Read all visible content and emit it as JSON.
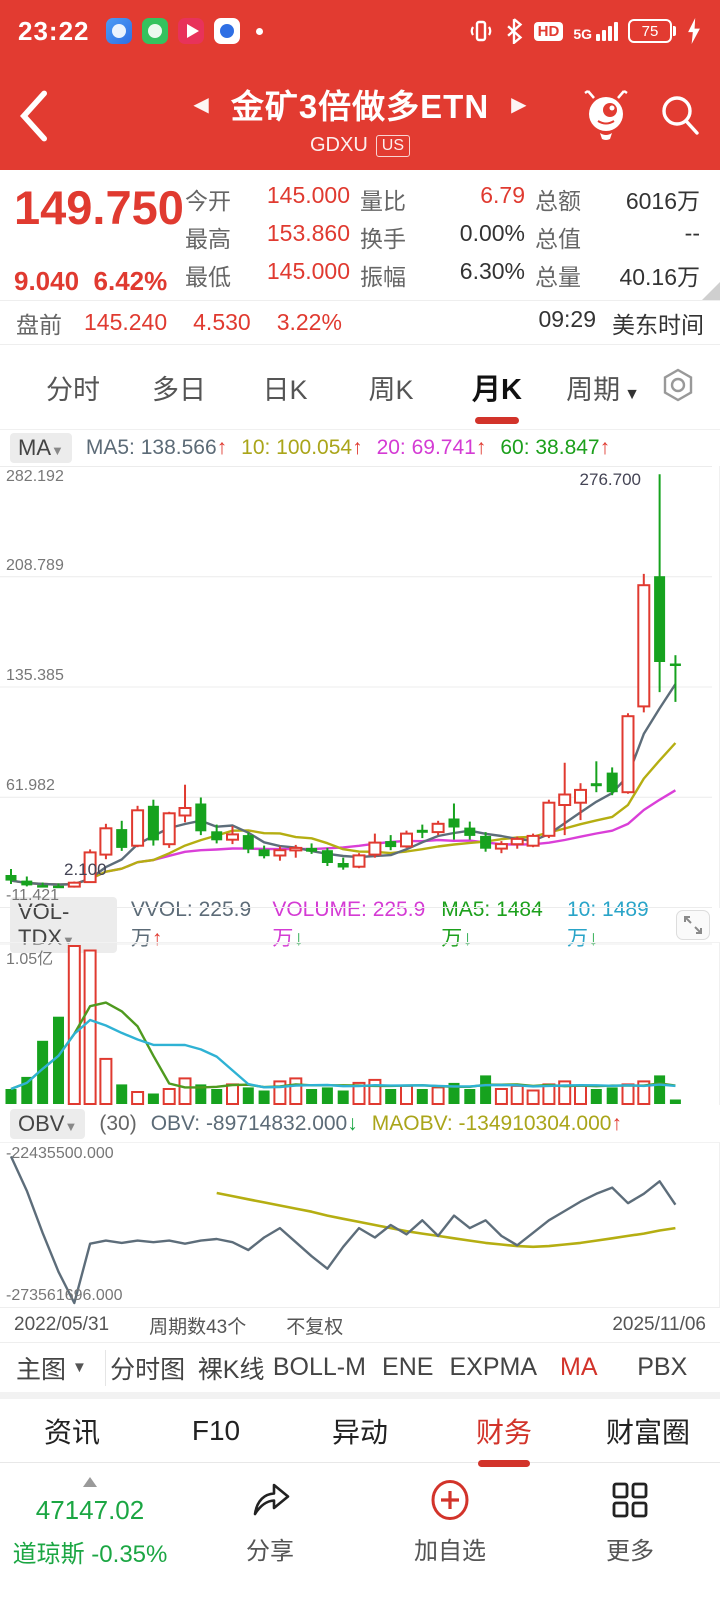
{
  "status_bar": {
    "time": "23:22",
    "hd_label": "HD",
    "network_label": "5G",
    "battery_pct": "75"
  },
  "header": {
    "title": "金矿3倍做多ETN",
    "symbol": "GDXU",
    "market": "US"
  },
  "quote": {
    "price": "149.750",
    "change": "9.040",
    "change_pct": "6.42%",
    "rows": [
      [
        {
          "label": "今开",
          "value": "145.000",
          "red": true
        },
        {
          "label": "量比",
          "value": "6.79",
          "red": true
        },
        {
          "label": "总额",
          "value": "6016万",
          "red": false
        }
      ],
      [
        {
          "label": "最高",
          "value": "153.860",
          "red": true
        },
        {
          "label": "换手",
          "value": "0.00%",
          "red": false
        },
        {
          "label": "总值",
          "value": "--",
          "red": false
        }
      ],
      [
        {
          "label": "最低",
          "value": "145.000",
          "red": true
        },
        {
          "label": "振幅",
          "value": "6.30%",
          "red": false
        },
        {
          "label": "总量",
          "value": "40.16万",
          "red": false
        }
      ]
    ]
  },
  "premarket": {
    "label": "盘前",
    "price": "145.240",
    "change": "4.530",
    "pct": "3.22%",
    "time": "09:29",
    "timezone": "美东时间"
  },
  "period_tabs": {
    "items": [
      "分时",
      "多日",
      "日K",
      "周K",
      "月K",
      "周期"
    ],
    "active": "月K"
  },
  "ma_bar": {
    "chip": "MA",
    "items": [
      {
        "text": "MA5: 138.566",
        "dir": "up",
        "color": "#5c6b77"
      },
      {
        "text": "10: 100.054",
        "dir": "up",
        "color": "#aaa51a"
      },
      {
        "text": "20: 69.741",
        "dir": "up",
        "color": "#d43bd4"
      },
      {
        "text": "60: 38.847",
        "dir": "up",
        "color": "#1ca01c"
      }
    ]
  },
  "vol_bar": {
    "chip": "VOL-TDX",
    "items": [
      {
        "text": "VVOL: 225.9万",
        "dir": "up",
        "color": "#5c6b77"
      },
      {
        "text": "VOLUME: 225.9万",
        "dir": "down",
        "color": "#d43bd4"
      },
      {
        "text": "MA5: 1484万",
        "dir": "down",
        "color": "#1ca01c"
      },
      {
        "text": "10: 1489万",
        "dir": "down",
        "color": "#29a4c8"
      }
    ]
  },
  "obv_bar": {
    "chip": "OBV",
    "param": "(30)",
    "items": [
      {
        "text": "OBV: -89714832.000",
        "dir": "down",
        "color": "#5c6b77"
      },
      {
        "text": "MAOBV: -134910304.000",
        "dir": "up",
        "color": "#aaa51a"
      }
    ]
  },
  "axis_row": {
    "start": "2022/05/31",
    "periods": "周期数43个",
    "adjust": "不复权",
    "end": "2025/11/06"
  },
  "indicator_toolbar": {
    "selector": "主图",
    "items": [
      "分时图",
      "裸K线",
      "BOLL-M",
      "ENE",
      "EXPMA",
      "MA",
      "PBX"
    ],
    "active": "MA"
  },
  "bottom_tabs": {
    "items": [
      "资讯",
      "F10",
      "异动",
      "财务",
      "财富圈"
    ],
    "active": "财务"
  },
  "bottom_nav": {
    "index_value": "47147.02",
    "index_name": "道琼斯 -0.35%",
    "share_label": "分享",
    "add_watch_label": "加自选",
    "more_label": "更多"
  },
  "colors": {
    "up": "#e03a30",
    "down": "#16a21e",
    "ma5": "#5d6d7a",
    "ma10": "#b5ae12",
    "ma20": "#da3fd8",
    "vol_ma5": "#4f9a1f",
    "vol_ma10": "#2fb2d4",
    "obv": "#5d6d7a",
    "maobv": "#b5ae12"
  },
  "chart_data": [
    {
      "type": "candlestick",
      "period": "月K",
      "x_start": "2022/05/31",
      "x_end": "2025/11/06",
      "periods": 43,
      "y_ticks": [
        "282.192",
        "208.789",
        "135.385",
        "61.982",
        "-11.421"
      ],
      "y_range": [
        -11.421,
        282.192
      ],
      "max_label": "276.700",
      "min_label": "2.100",
      "ma_periods": [
        5,
        10,
        20
      ],
      "candles": [
        [
          10.5,
          14.5,
          4.5,
          6.8
        ],
        [
          6.8,
          9.5,
          2.9,
          3.6
        ],
        [
          3.8,
          5.5,
          2.6,
          3.2
        ],
        [
          3.4,
          4.9,
          2.4,
          3.0
        ],
        [
          2.8,
          6.2,
          2.1,
          5.4
        ],
        [
          5.8,
          27.5,
          5.2,
          25.5
        ],
        [
          24.0,
          44.5,
          21.0,
          41.5
        ],
        [
          41.0,
          46.5,
          26.5,
          28.5
        ],
        [
          30.0,
          56.5,
          29.0,
          53.5
        ],
        [
          56.5,
          60.5,
          30.0,
          33.5
        ],
        [
          31.0,
          52.5,
          28.5,
          51.5
        ],
        [
          50.0,
          70.5,
          45.5,
          55.0
        ],
        [
          58.0,
          62.0,
          37.0,
          39.5
        ],
        [
          39.5,
          44.0,
          31.5,
          33.5
        ],
        [
          34.0,
          43.0,
          31.0,
          37.5
        ],
        [
          37.0,
          38.5,
          25.0,
          27.5
        ],
        [
          27.5,
          30.0,
          21.5,
          23.0
        ],
        [
          23.5,
          29.5,
          20.0,
          27.0
        ],
        [
          27.0,
          30.5,
          22.0,
          28.5
        ],
        [
          28.5,
          31.5,
          24.5,
          26.0
        ],
        [
          27.0,
          28.5,
          16.5,
          18.5
        ],
        [
          18.5,
          22.0,
          14.0,
          15.5
        ],
        [
          16.0,
          25.0,
          15.0,
          23.5
        ],
        [
          24.0,
          38.0,
          22.0,
          32.0
        ],
        [
          33.0,
          37.0,
          27.0,
          29.0
        ],
        [
          29.5,
          40.0,
          28.5,
          38.0
        ],
        [
          40.5,
          44.0,
          35.0,
          38.5
        ],
        [
          39.0,
          46.5,
          37.0,
          44.5
        ],
        [
          48.0,
          58.0,
          34.0,
          42.0
        ],
        [
          42.0,
          46.0,
          34.0,
          36.5
        ],
        [
          36.5,
          39.0,
          26.0,
          28.0
        ],
        [
          28.0,
          33.0,
          25.0,
          31.0
        ],
        [
          31.0,
          36.0,
          28.0,
          34.5
        ],
        [
          30.0,
          38.0,
          29.0,
          36.5
        ],
        [
          36.5,
          60.5,
          35.0,
          58.5
        ],
        [
          57.0,
          85.0,
          37.0,
          64.0
        ],
        [
          58.5,
          71.5,
          47.0,
          67.0
        ],
        [
          71.5,
          86.0,
          65.5,
          69.5
        ],
        [
          78.5,
          82.0,
          63.5,
          65.5
        ],
        [
          65.5,
          118.0,
          64.5,
          116.0
        ],
        [
          122.5,
          210.5,
          118.5,
          203.0
        ],
        [
          209.0,
          276.7,
          132.0,
          152.0
        ],
        [
          151.0,
          156.5,
          125.5,
          149.75
        ]
      ]
    },
    {
      "type": "bar",
      "name": "VOL-TDX",
      "y_max_label": "1.05亿",
      "y_max_value_yi": 1.05,
      "ma_periods": [
        5,
        10
      ],
      "volumes_yi": [
        0.1,
        0.18,
        0.42,
        0.58,
        1.05,
        1.02,
        0.3,
        0.13,
        0.08,
        0.07,
        0.1,
        0.17,
        0.13,
        0.1,
        0.13,
        0.11,
        0.09,
        0.15,
        0.17,
        0.1,
        0.11,
        0.09,
        0.14,
        0.16,
        0.1,
        0.12,
        0.1,
        0.11,
        0.14,
        0.1,
        0.19,
        0.1,
        0.12,
        0.09,
        0.13,
        0.15,
        0.12,
        0.1,
        0.11,
        0.13,
        0.15,
        0.19,
        0.03
      ]
    },
    {
      "type": "line",
      "name": "OBV(30)",
      "y_top_label": "-22435500.000",
      "y_bottom_label": "-273561696.000",
      "obv_current": "-89714832.000",
      "maobv_current": "-134910304.000",
      "obv_norm": [
        0.06,
        0.28,
        0.55,
        0.8,
        1.0,
        0.62,
        0.6,
        0.615,
        0.6,
        0.61,
        0.6,
        0.62,
        0.6,
        0.59,
        0.61,
        0.66,
        0.58,
        0.52,
        0.61,
        0.7,
        0.78,
        0.64,
        0.52,
        0.58,
        0.5,
        0.56,
        0.47,
        0.57,
        0.44,
        0.52,
        0.47,
        0.57,
        0.63,
        0.55,
        0.47,
        0.41,
        0.35,
        0.3,
        0.26,
        0.36,
        0.3,
        0.22,
        0.37
      ],
      "maobv_norm": [
        null,
        null,
        null,
        null,
        null,
        null,
        null,
        null,
        null,
        null,
        null,
        null,
        null,
        0.295,
        0.315,
        0.335,
        0.355,
        0.375,
        0.395,
        0.415,
        0.44,
        0.46,
        0.48,
        0.5,
        0.52,
        0.54,
        0.555,
        0.57,
        0.585,
        0.6,
        0.615,
        0.625,
        0.635,
        0.64,
        0.635,
        0.625,
        0.615,
        0.6,
        0.585,
        0.57,
        0.555,
        0.535,
        0.52
      ]
    }
  ]
}
